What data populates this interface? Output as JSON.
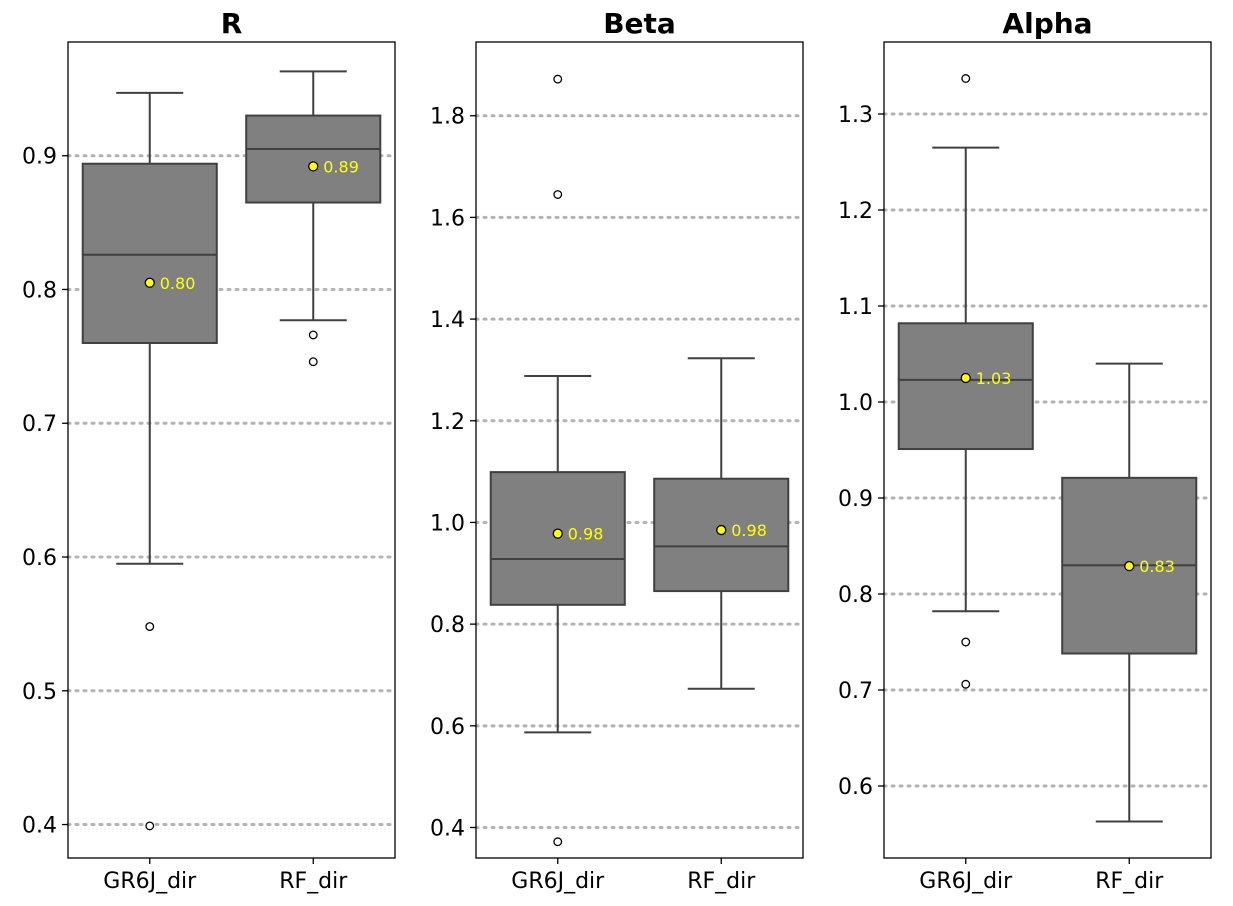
{
  "colors": {
    "box_fill": "#808080",
    "box_stroke": "#404040",
    "grid": "#b3b3b3",
    "mean_marker": "#ffff00",
    "mean_label": "#ffff00"
  },
  "chart_data": [
    {
      "type": "box",
      "title": "R",
      "categories": [
        "GR6J_dir",
        "RF_dir"
      ],
      "ylim": [
        0.375,
        0.985
      ],
      "yticks": [
        0.4,
        0.5,
        0.6,
        0.7,
        0.8,
        0.9
      ],
      "ytick_labels": [
        "0.4",
        "0.5",
        "0.6",
        "0.7",
        "0.8",
        "0.9"
      ],
      "grid": "horizontal dotted",
      "boxes": [
        {
          "category": "GR6J_dir",
          "whisker_low": 0.595,
          "q1": 0.76,
          "median": 0.826,
          "q3": 0.894,
          "whisker_high": 0.947,
          "outliers": [
            0.548,
            0.399
          ],
          "mean": 0.805,
          "mean_label": "0.80"
        },
        {
          "category": "RF_dir",
          "whisker_low": 0.777,
          "q1": 0.865,
          "median": 0.905,
          "q3": 0.93,
          "whisker_high": 0.963,
          "outliers": [
            0.766,
            0.746
          ],
          "mean": 0.892,
          "mean_label": "0.89"
        }
      ]
    },
    {
      "type": "box",
      "title": "Beta",
      "categories": [
        "GR6J_dir",
        "RF_dir"
      ],
      "ylim": [
        0.34,
        1.945
      ],
      "yticks": [
        0.4,
        0.6,
        0.8,
        1.0,
        1.2,
        1.4,
        1.6,
        1.8
      ],
      "ytick_labels": [
        "0.4",
        "0.6",
        "0.8",
        "1.0",
        "1.2",
        "1.4",
        "1.6",
        "1.8"
      ],
      "grid": "horizontal dotted",
      "boxes": [
        {
          "category": "GR6J_dir",
          "whisker_low": 0.587,
          "q1": 0.838,
          "median": 0.928,
          "q3": 1.099,
          "whisker_high": 1.288,
          "outliers": [
            1.872,
            1.645,
            0.372
          ],
          "mean": 0.978,
          "mean_label": "0.98"
        },
        {
          "category": "RF_dir",
          "whisker_low": 0.673,
          "q1": 0.865,
          "median": 0.953,
          "q3": 1.086,
          "whisker_high": 1.323,
          "outliers": [],
          "mean": 0.985,
          "mean_label": "0.98"
        }
      ]
    },
    {
      "type": "box",
      "title": "Alpha",
      "categories": [
        "GR6J_dir",
        "RF_dir"
      ],
      "ylim": [
        0.525,
        1.375
      ],
      "yticks": [
        0.6,
        0.7,
        0.8,
        0.9,
        1.0,
        1.1,
        1.2,
        1.3
      ],
      "ytick_labels": [
        "0.6",
        "0.7",
        "0.8",
        "0.9",
        "1.0",
        "1.1",
        "1.2",
        "1.3"
      ],
      "grid": "horizontal dotted",
      "boxes": [
        {
          "category": "GR6J_dir",
          "whisker_low": 0.782,
          "q1": 0.951,
          "median": 1.023,
          "q3": 1.082,
          "whisker_high": 1.265,
          "outliers": [
            1.337,
            0.75,
            0.706
          ],
          "mean": 1.025,
          "mean_label": "1.03"
        },
        {
          "category": "RF_dir",
          "whisker_low": 0.563,
          "q1": 0.738,
          "median": 0.83,
          "q3": 0.921,
          "whisker_high": 1.04,
          "outliers": [],
          "mean": 0.829,
          "mean_label": "0.83"
        }
      ]
    }
  ]
}
